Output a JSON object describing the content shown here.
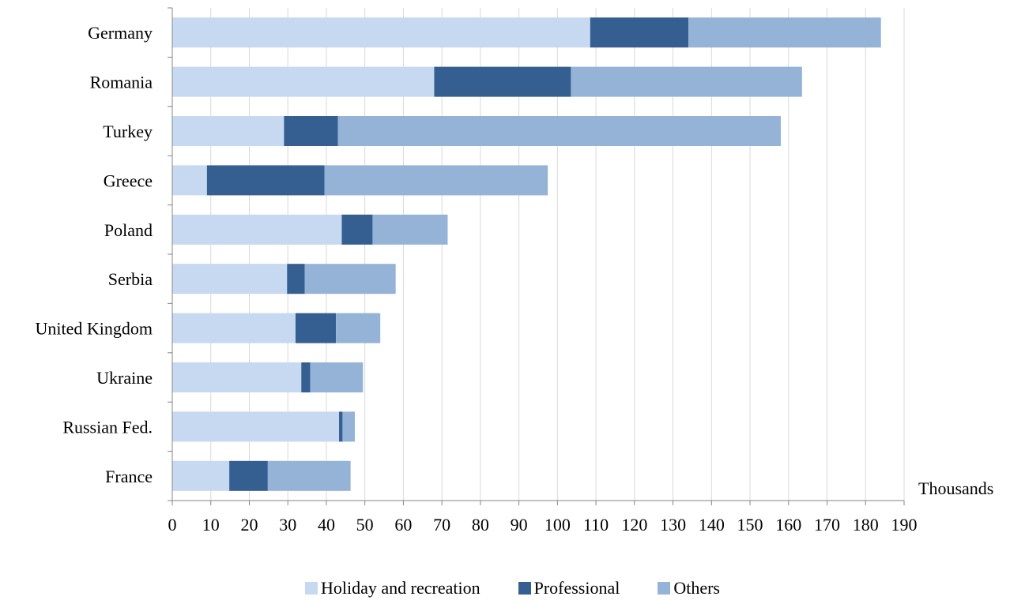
{
  "chart_data": {
    "type": "bar",
    "orientation": "horizontal",
    "stacked": true,
    "categories": [
      "Germany",
      "Romania",
      "Turkey",
      "Greece",
      "Poland",
      "Serbia",
      "United Kingdom",
      "Ukraine",
      "Russian Fed.",
      "France"
    ],
    "series": [
      {
        "name": "Holiday and recreation",
        "color": "#c6d9f1",
        "values": [
          108.5,
          68,
          29,
          9,
          44,
          29.8,
          32,
          33.5,
          43.3,
          14.8
        ]
      },
      {
        "name": "Professional",
        "color": "#355f91",
        "values": [
          25.5,
          35.5,
          14,
          30.5,
          8,
          4.6,
          10.5,
          2.3,
          0.9,
          10
        ]
      },
      {
        "name": "Others",
        "color": "#95b3d7",
        "values": [
          50,
          60,
          115,
          58,
          19.5,
          23.6,
          11.5,
          13.7,
          3.2,
          21.5
        ]
      }
    ],
    "xaxis": {
      "ticks": [
        "0",
        "10",
        "20",
        "30",
        "40",
        "50",
        "60",
        "70",
        "80",
        "90",
        "100",
        "110",
        "120",
        "130",
        "140",
        "150",
        "160",
        "170",
        "180",
        "190"
      ],
      "xlim": [
        0,
        190
      ],
      "unit_label": "Thousands"
    },
    "grid": true,
    "legend_position": "bottom"
  }
}
